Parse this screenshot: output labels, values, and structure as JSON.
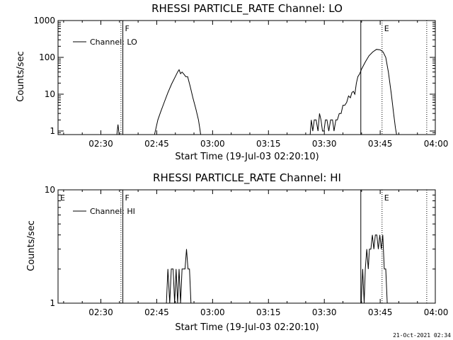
{
  "stamp": "21-Oct-2021 02:34",
  "chart_data": [
    {
      "type": "line",
      "title": "RHESSI PARTICLE_RATE Channel: LO",
      "xlabel": "Start Time (19-Jul-03 02:20:10)",
      "ylabel": "Counts/sec",
      "yscale": "log",
      "ylim": [
        0.8,
        1000
      ],
      "y_ticks": [
        {
          "value": 1,
          "label": "1"
        },
        {
          "value": 10,
          "label": "10"
        },
        {
          "value": 100,
          "label": "100"
        },
        {
          "value": 1000,
          "label": "1000"
        }
      ],
      "xlim_minutes": [
        -1.5,
        99.8
      ],
      "x_ticks": [
        {
          "minutes": 10,
          "label": "02:30"
        },
        {
          "minutes": 25,
          "label": "02:45"
        },
        {
          "minutes": 40,
          "label": "03:00"
        },
        {
          "minutes": 55,
          "label": "03:15"
        },
        {
          "minutes": 70,
          "label": "03:30"
        },
        {
          "minutes": 85,
          "label": "03:45"
        },
        {
          "minutes": 100,
          "label": "04:00"
        }
      ],
      "legend": "Channel: LO",
      "legend_position": "top-left",
      "markers": [
        {
          "minutes": 15.9,
          "style": "solid",
          "label": "F"
        },
        {
          "minutes": 79.8,
          "style": "solid",
          "label": ""
        },
        {
          "minutes": 85.5,
          "style": "dotted",
          "label": "E"
        },
        {
          "minutes": 15.4,
          "style": "dotted",
          "label": ""
        },
        {
          "minutes": 97.5,
          "style": "dotted",
          "label": ""
        }
      ],
      "series": [
        {
          "name": "Channel: LO",
          "points": [
            [
              14.3,
              0.8
            ],
            [
              14.6,
              1.5
            ],
            [
              14.9,
              0.8
            ]
          ]
        },
        {
          "name": "Channel: LO",
          "points": [
            [
              24.4,
              0.8
            ],
            [
              24.8,
              1.2
            ],
            [
              25.3,
              2.0
            ],
            [
              26.0,
              3.2
            ],
            [
              27.0,
              6.0
            ],
            [
              28.0,
              11.0
            ],
            [
              29.0,
              19.0
            ],
            [
              30.0,
              30.0
            ],
            [
              30.6,
              40.0
            ],
            [
              31.0,
              46.0
            ],
            [
              31.4,
              36.0
            ],
            [
              31.8,
              40.0
            ],
            [
              32.3,
              35.0
            ],
            [
              32.8,
              30.0
            ],
            [
              33.3,
              30.0
            ],
            [
              34.0,
              16.0
            ],
            [
              34.7,
              8.0
            ],
            [
              35.5,
              4.0
            ],
            [
              36.2,
              2.0
            ],
            [
              36.6,
              1.1
            ],
            [
              36.8,
              0.8
            ]
          ]
        },
        {
          "name": "Channel: LO",
          "points": [
            [
              66.2,
              0.8
            ],
            [
              66.5,
              2.0
            ],
            [
              66.9,
              1.0
            ],
            [
              67.3,
              2.0
            ],
            [
              67.8,
              2.0
            ],
            [
              68.3,
              1.0
            ],
            [
              68.7,
              3.0
            ],
            [
              69.1,
              2.0
            ],
            [
              69.5,
              1.0
            ],
            [
              69.9,
              1.0
            ],
            [
              70.3,
              2.0
            ],
            [
              70.7,
              2.0
            ],
            [
              71.2,
              1.0
            ],
            [
              71.7,
              2.0
            ],
            [
              72.2,
              2.0
            ],
            [
              72.6,
              1.0
            ],
            [
              73.1,
              2.0
            ],
            [
              73.5,
              2.0
            ],
            [
              74.0,
              3.0
            ],
            [
              74.5,
              3.0
            ],
            [
              75.0,
              5.0
            ],
            [
              75.5,
              5.0
            ],
            [
              76.0,
              6.0
            ],
            [
              76.5,
              9.0
            ],
            [
              77.0,
              8.0
            ],
            [
              77.4,
              11.0
            ],
            [
              77.8,
              12.0
            ],
            [
              78.2,
              10.0
            ],
            [
              78.6,
              20.0
            ],
            [
              79.0,
              30.0
            ],
            [
              79.5,
              36.0
            ],
            [
              80.0,
              48.0
            ],
            [
              81.0,
              75.0
            ],
            [
              82.0,
              110.0
            ],
            [
              83.0,
              140.0
            ],
            [
              84.0,
              165.0
            ],
            [
              85.0,
              160.0
            ],
            [
              85.8,
              140.0
            ],
            [
              86.5,
              100.0
            ],
            [
              87.2,
              40.0
            ],
            [
              88.0,
              10.0
            ],
            [
              88.6,
              3.0
            ],
            [
              89.1,
              1.2
            ],
            [
              89.4,
              0.8
            ]
          ]
        }
      ]
    },
    {
      "type": "line",
      "title": "RHESSI PARTICLE_RATE Channel: HI",
      "xlabel": "Start Time (19-Jul-03 02:20:10)",
      "ylabel": "Counts/sec",
      "yscale": "log",
      "ylim": [
        1,
        10
      ],
      "y_ticks": [
        {
          "value": 1,
          "label": "1"
        },
        {
          "value": 10,
          "label": "10"
        }
      ],
      "xlim_minutes": [
        -1.5,
        99.8
      ],
      "x_ticks": [
        {
          "minutes": 10,
          "label": "02:30"
        },
        {
          "minutes": 25,
          "label": "02:45"
        },
        {
          "minutes": 40,
          "label": "03:00"
        },
        {
          "minutes": 55,
          "label": "03:15"
        },
        {
          "minutes": 70,
          "label": "03:30"
        },
        {
          "minutes": 85,
          "label": "03:45"
        },
        {
          "minutes": 100,
          "label": "04:00"
        }
      ],
      "legend": "Channel: HI",
      "legend_position": "top-left",
      "markers": [
        {
          "minutes": 15.9,
          "style": "solid",
          "label": "F"
        },
        {
          "minutes": 79.8,
          "style": "solid",
          "label": ""
        },
        {
          "minutes": 85.5,
          "style": "dotted",
          "label": "E"
        },
        {
          "minutes": 15.4,
          "style": "dotted",
          "label": ""
        },
        {
          "minutes": 97.5,
          "style": "dotted",
          "label": ""
        },
        {
          "minutes": -1.5,
          "style": "none",
          "label": "E"
        }
      ],
      "series": [
        {
          "name": "Channel: HI",
          "points": [
            [
              27.6,
              1
            ],
            [
              28.0,
              2
            ],
            [
              28.5,
              1
            ],
            [
              28.9,
              2
            ],
            [
              29.4,
              2
            ],
            [
              29.8,
              1
            ],
            [
              30.2,
              2
            ],
            [
              30.6,
              1
            ],
            [
              31.0,
              2
            ],
            [
              31.4,
              1
            ],
            [
              31.8,
              2
            ],
            [
              32.2,
              2
            ],
            [
              32.6,
              2
            ],
            [
              33.0,
              3
            ],
            [
              33.4,
              2
            ],
            [
              33.8,
              2
            ],
            [
              34.2,
              1
            ],
            [
              34.5,
              1
            ]
          ]
        },
        {
          "name": "Channel: HI",
          "points": [
            [
              79.9,
              1
            ],
            [
              80.3,
              2
            ],
            [
              80.7,
              1
            ],
            [
              81.0,
              2
            ],
            [
              81.4,
              3
            ],
            [
              81.8,
              2
            ],
            [
              82.1,
              3
            ],
            [
              82.5,
              3
            ],
            [
              82.9,
              4
            ],
            [
              83.3,
              3
            ],
            [
              83.7,
              4
            ],
            [
              84.1,
              4
            ],
            [
              84.5,
              3
            ],
            [
              84.9,
              4
            ],
            [
              85.3,
              3
            ],
            [
              85.7,
              4
            ],
            [
              86.1,
              2
            ],
            [
              86.5,
              2
            ],
            [
              86.9,
              1
            ],
            [
              87.2,
              1
            ]
          ]
        }
      ]
    }
  ]
}
